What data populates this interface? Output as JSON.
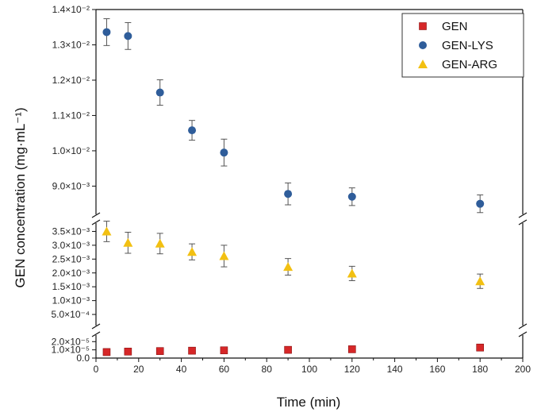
{
  "chart_data": {
    "type": "scatter",
    "xlabel": "Time (min)",
    "ylabel": "GEN concentration (mg·mL⁻¹)",
    "xlim": [
      0,
      200
    ],
    "x_ticks": [
      0,
      20,
      40,
      60,
      80,
      100,
      120,
      140,
      160,
      180,
      200
    ],
    "x_tick_labels": [
      "0",
      "20",
      "40",
      "60",
      "80",
      "100",
      "120",
      "140",
      "160",
      "180",
      "200"
    ],
    "legend_position": "top-right",
    "y_segments": [
      {
        "name": "low",
        "ylim": [
          0,
          2.8e-05
        ],
        "ticks": [
          0,
          1e-05,
          2e-05
        ],
        "tick_labels": [
          "0.0",
          "1.0×10⁻⁵",
          "2.0×10⁻⁵"
        ]
      },
      {
        "name": "mid",
        "ylim": [
          0.0001,
          0.0038
        ],
        "ticks": [
          0.0005,
          0.001,
          0.0015,
          0.002,
          0.0025,
          0.003,
          0.0035
        ],
        "tick_labels": [
          "5.0×10⁻⁴",
          "1.0×10⁻³",
          "1.5×10⁻³",
          "2.0×10⁻³",
          "2.5×10⁻³",
          "3.0×10⁻³",
          "3.5×10⁻³"
        ]
      },
      {
        "name": "high",
        "ylim": [
          0.0082,
          0.014
        ],
        "ticks": [
          0.009,
          0.01,
          0.011,
          0.012,
          0.013,
          0.014
        ],
        "tick_labels": [
          "9.0×10⁻³",
          "1.0×10⁻²",
          "1.1×10⁻²",
          "1.2×10⁻²",
          "1.3×10⁻²",
          "1.4×10⁻²"
        ]
      }
    ],
    "series": [
      {
        "name": "GEN",
        "marker": "square",
        "color": "#d62728",
        "segment": "low",
        "x": [
          5,
          15,
          30,
          45,
          60,
          90,
          120,
          180
        ],
        "y": [
          7.3e-06,
          7.9e-06,
          8.5e-06,
          9e-06,
          9.4e-06,
          1e-05,
          1.07e-05,
          1.28e-05
        ],
        "err": [
          4e-06,
          3.5e-06,
          3.3e-06,
          1.5e-06,
          1.3e-06,
          1.5e-06,
          1.8e-06,
          1.8e-06
        ]
      },
      {
        "name": "GEN-LYS",
        "marker": "circle",
        "color": "#2f5d9a",
        "segment": "high",
        "x": [
          5,
          15,
          30,
          45,
          60,
          90,
          120,
          180
        ],
        "y": [
          0.01336,
          0.01325,
          0.01165,
          0.01058,
          0.00995,
          0.00878,
          0.0087,
          0.0085
        ],
        "err": [
          0.00038,
          0.00038,
          0.00036,
          0.00028,
          0.00038,
          0.00031,
          0.00025,
          0.00025
        ]
      },
      {
        "name": "GEN-ARG",
        "marker": "triangle",
        "color": "#f2c012",
        "segment": "mid",
        "x": [
          5,
          15,
          30,
          45,
          60,
          90,
          120,
          180
        ],
        "y": [
          0.0035,
          0.00309,
          0.00306,
          0.00276,
          0.00261,
          0.00222,
          0.00198,
          0.0017
        ],
        "err": [
          0.00037,
          0.00038,
          0.00037,
          0.00029,
          0.00039,
          0.0003,
          0.00026,
          0.00026
        ]
      }
    ]
  }
}
